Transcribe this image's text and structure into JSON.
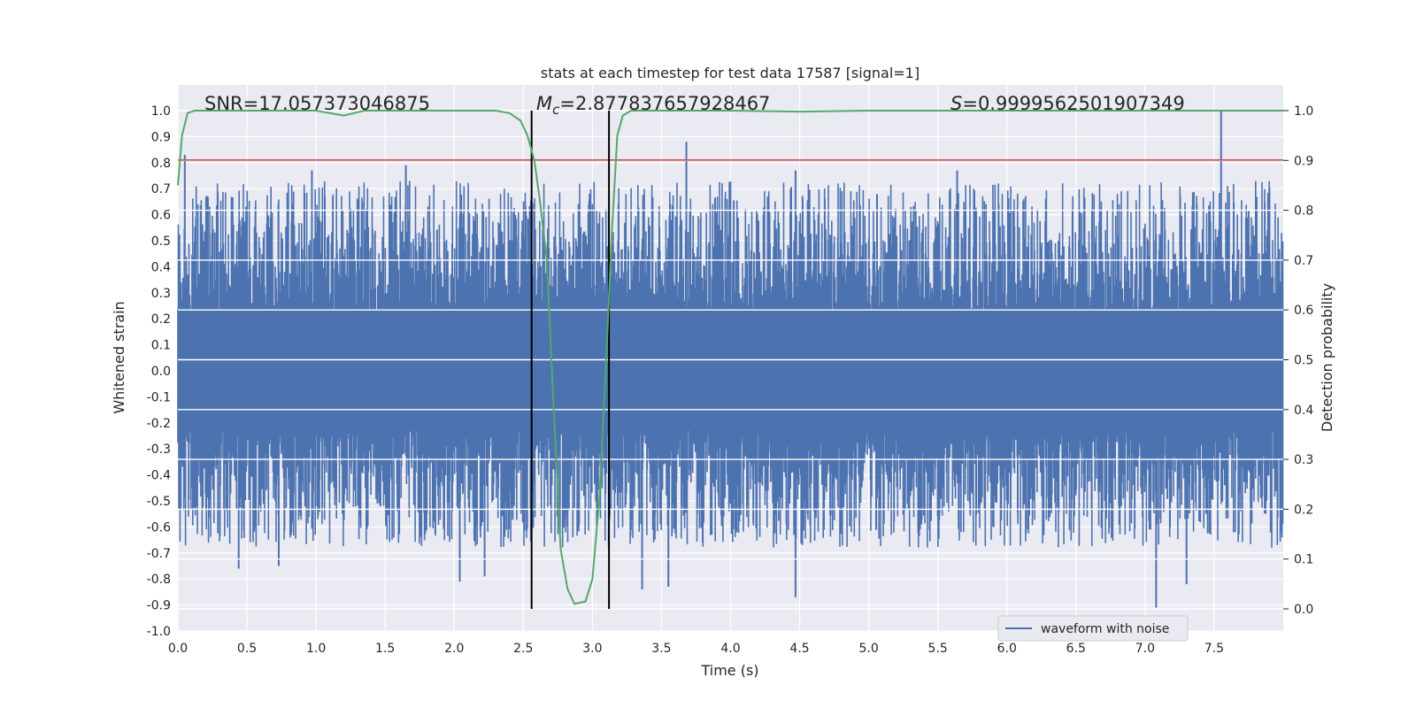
{
  "chart_data": {
    "type": "line",
    "title": "stats at each timestep for test data 17587 [signal=1]",
    "xlabel": "Time (s)",
    "ylabel": "Whitened strain",
    "y2label": "Detection probability",
    "xlim": [
      0.0,
      8.0
    ],
    "ylim": [
      -1.0,
      1.0
    ],
    "y2lim": [
      -0.05,
      1.05
    ],
    "x_ticks": [
      "0.0",
      "0.5",
      "1.0",
      "1.5",
      "2.0",
      "2.5",
      "3.0",
      "3.5",
      "4.0",
      "4.5",
      "5.0",
      "5.5",
      "6.0",
      "6.5",
      "7.0",
      "7.5"
    ],
    "y_ticks": [
      "1.0",
      "0.9",
      "0.8",
      "0.7",
      "0.6",
      "0.5",
      "0.4",
      "0.3",
      "0.2",
      "0.1",
      "0.0",
      "-0.1",
      "-0.2",
      "-0.3",
      "-0.4",
      "-0.5",
      "-0.6",
      "-0.7",
      "-0.8",
      "-0.9",
      "-1.0"
    ],
    "y2_ticks": [
      "1.0",
      "0.9",
      "0.8",
      "0.7",
      "0.6",
      "0.5",
      "0.4",
      "0.3",
      "0.2",
      "0.1",
      "0.0"
    ],
    "grid": true,
    "legend": {
      "placement": "lower-right",
      "entries": [
        "waveform with noise"
      ]
    },
    "annotations": {
      "snr": "SNR=17.057373046875",
      "mc_symbol": "M",
      "mc_sub": "c",
      "mc_value": "=2.877837657928467",
      "s_symbol": "S",
      "s_value": "=0.9999562501907349"
    },
    "threshold_y": 0.81,
    "vlines_x": [
      2.56,
      3.12
    ],
    "waveform": {
      "name": "waveform with noise",
      "color": "#4c72b0",
      "core_amplitude": 0.23,
      "peaks": [
        {
          "x": 0.05,
          "y": 0.83
        },
        {
          "x": 3.68,
          "y": 0.88
        },
        {
          "x": 7.55,
          "y": 1.0
        },
        {
          "x": 1.65,
          "y": 0.79
        },
        {
          "x": 0.97,
          "y": 0.77
        },
        {
          "x": 4.47,
          "y": 0.77
        },
        {
          "x": 5.64,
          "y": 0.77
        },
        {
          "x": 7.08,
          "y": -0.91
        },
        {
          "x": 4.47,
          "y": -0.87
        },
        {
          "x": 3.36,
          "y": -0.84
        },
        {
          "x": 2.04,
          "y": -0.81
        },
        {
          "x": 7.3,
          "y": -0.82
        },
        {
          "x": 3.55,
          "y": -0.83
        },
        {
          "x": 2.22,
          "y": -0.79
        },
        {
          "x": 0.44,
          "y": -0.76
        },
        {
          "x": 0.73,
          "y": -0.75
        }
      ]
    },
    "probability": {
      "name": "Detection probability",
      "color": "#55a868",
      "points": [
        [
          0.0,
          0.85
        ],
        [
          0.03,
          0.95
        ],
        [
          0.07,
          0.995
        ],
        [
          0.12,
          1.0
        ],
        [
          0.3,
          1.0
        ],
        [
          0.8,
          1.0
        ],
        [
          1.0,
          1.0
        ],
        [
          1.2,
          0.99
        ],
        [
          1.35,
          1.0
        ],
        [
          2.0,
          1.0
        ],
        [
          2.3,
          1.0
        ],
        [
          2.4,
          0.995
        ],
        [
          2.48,
          0.98
        ],
        [
          2.53,
          0.95
        ],
        [
          2.58,
          0.9
        ],
        [
          2.62,
          0.82
        ],
        [
          2.67,
          0.7
        ],
        [
          2.72,
          0.4
        ],
        [
          2.77,
          0.12
        ],
        [
          2.82,
          0.04
        ],
        [
          2.87,
          0.01
        ],
        [
          2.95,
          0.015
        ],
        [
          3.0,
          0.06
        ],
        [
          3.05,
          0.22
        ],
        [
          3.1,
          0.5
        ],
        [
          3.14,
          0.75
        ],
        [
          3.18,
          0.95
        ],
        [
          3.22,
          0.99
        ],
        [
          3.28,
          1.0
        ],
        [
          4.0,
          1.0
        ],
        [
          4.5,
          0.998
        ],
        [
          5.0,
          1.0
        ],
        [
          8.0,
          1.0
        ]
      ]
    },
    "colors": {
      "background": "#eaeaf2",
      "threshold": "#c44e52",
      "vlines": "#000000"
    }
  }
}
